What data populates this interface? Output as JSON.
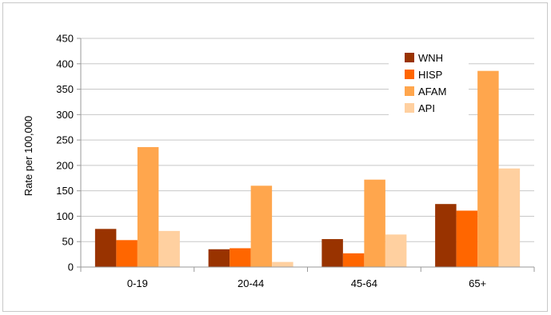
{
  "chart_data": {
    "type": "bar",
    "title": "",
    "xlabel": "",
    "ylabel": "Rate per 100,000",
    "ylim": [
      0,
      450
    ],
    "yticks": [
      0,
      50,
      100,
      150,
      200,
      250,
      300,
      350,
      400,
      450
    ],
    "grid": true,
    "legend_position": "top-right",
    "categories": [
      "0-19",
      "20-44",
      "45-64",
      "65+"
    ],
    "series": [
      {
        "name": "WNH",
        "color": "#993300",
        "values": [
          75,
          35,
          55,
          124
        ]
      },
      {
        "name": "HISP",
        "color": "#ff6600",
        "values": [
          53,
          37,
          27,
          111
        ]
      },
      {
        "name": "AFAM",
        "color": "#ffa64d",
        "values": [
          236,
          160,
          172,
          386
        ]
      },
      {
        "name": "API",
        "color": "#ffd0a0",
        "values": [
          71,
          10,
          64,
          194
        ]
      }
    ]
  }
}
